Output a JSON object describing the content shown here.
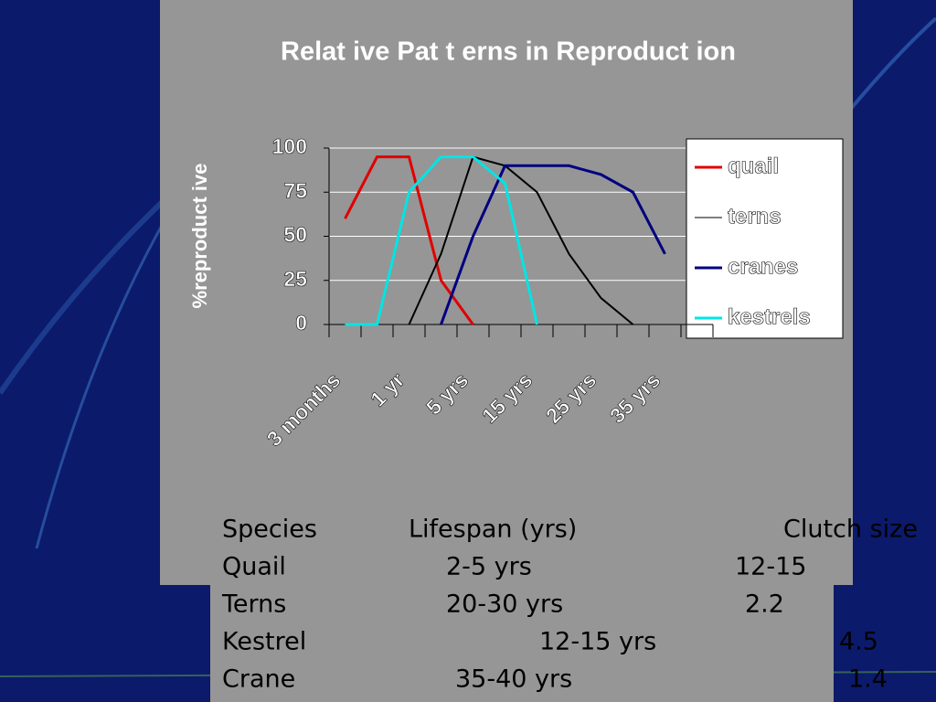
{
  "chart_data": {
    "type": "line",
    "title": "Relat ive Pat t erns in Reproduct ion",
    "y_label": "%reproduct ive",
    "categories": [
      "3 months",
      null,
      "1 yr",
      null,
      "5 yrs",
      null,
      "15 yrs",
      null,
      "25 yrs",
      null,
      "35 yrs",
      null
    ],
    "series": [
      {
        "name": "quail",
        "color": "#e00000",
        "values": [
          60,
          95,
          95,
          25,
          0,
          null,
          null,
          null,
          null,
          null,
          null,
          null
        ]
      },
      {
        "name": "terns",
        "color": "#000000",
        "values": [
          null,
          null,
          0,
          40,
          95,
          90,
          75,
          40,
          15,
          0,
          null,
          null
        ]
      },
      {
        "name": "cranes",
        "color": "#000080",
        "values": [
          null,
          null,
          null,
          0,
          50,
          90,
          90,
          90,
          85,
          75,
          40,
          null
        ]
      },
      {
        "name": "kestrels",
        "color": "#00e5e5",
        "values": [
          0,
          0,
          75,
          95,
          95,
          80,
          0,
          null,
          null,
          null,
          null,
          null
        ]
      }
    ],
    "ylim": [
      0,
      100
    ],
    "yticks": [
      0,
      25,
      50,
      75,
      100
    ],
    "grid": true,
    "legend": "right"
  },
  "table": {
    "header": [
      "Species",
      "Lifespan (yrs)",
      "Clutch size"
    ],
    "rows": [
      [
        "Quail",
        "2-5 yrs",
        "12-15"
      ],
      [
        "Terns",
        "20-30 yrs",
        "2.2"
      ],
      [
        "Kestrel",
        "12-15 yrs",
        "4.5"
      ],
      [
        "Crane",
        "35-40 yrs",
        "1.4"
      ]
    ]
  }
}
